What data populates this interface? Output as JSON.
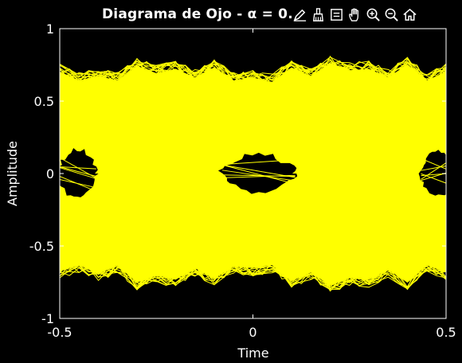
{
  "window": {
    "background": "#000000",
    "axes_color": "#ffffff",
    "text_color": "#ffffff"
  },
  "toolbar": {
    "icons": [
      "edit-plot-icon",
      "brush-icon",
      "data-cursor-icon",
      "pan-hand-icon",
      "zoom-in-icon",
      "zoom-out-icon",
      "home-icon"
    ]
  },
  "chart_data": {
    "type": "line",
    "title": "Diagrama de Ojo - α = 0.",
    "xlabel": "Time",
    "ylabel": "Amplitude",
    "xlim": [
      -0.5,
      0.5
    ],
    "ylim": [
      -1,
      1
    ],
    "xticks": [
      -0.5,
      0,
      0.5
    ],
    "xtick_labels": [
      "-0.5",
      "0",
      "0.5"
    ],
    "yticks": [
      -1,
      -0.5,
      0,
      0.5,
      1
    ],
    "ytick_labels": [
      "-1",
      "-0.5",
      "0",
      "0.5",
      "1"
    ],
    "grid": false,
    "line_color": "#ffff00",
    "envelope_upper": {
      "x": [
        -0.5,
        -0.45,
        -0.4,
        -0.35,
        -0.3,
        -0.25,
        -0.2,
        -0.15,
        -0.1,
        -0.05,
        0,
        0.05,
        0.1,
        0.15,
        0.2,
        0.25,
        0.3,
        0.35,
        0.4,
        0.45,
        0.5
      ],
      "y": [
        0.7,
        0.64,
        0.67,
        0.64,
        0.74,
        0.69,
        0.72,
        0.66,
        0.73,
        0.64,
        0.66,
        0.63,
        0.73,
        0.67,
        0.76,
        0.71,
        0.72,
        0.66,
        0.75,
        0.64,
        0.7
      ]
    },
    "envelope_lower": {
      "x": [
        -0.5,
        -0.45,
        -0.4,
        -0.35,
        -0.3,
        -0.25,
        -0.2,
        -0.15,
        -0.1,
        -0.05,
        0,
        0.05,
        0.1,
        0.15,
        0.2,
        0.25,
        0.3,
        0.35,
        0.4,
        0.45,
        0.5
      ],
      "y": [
        -0.67,
        -0.63,
        -0.69,
        -0.63,
        -0.75,
        -0.7,
        -0.73,
        -0.65,
        -0.72,
        -0.64,
        -0.65,
        -0.63,
        -0.74,
        -0.68,
        -0.77,
        -0.72,
        -0.73,
        -0.66,
        -0.75,
        -0.63,
        -0.68
      ]
    },
    "eye_openings": [
      {
        "x_center": -0.455,
        "half_width": 0.055,
        "half_height": 0.18
      },
      {
        "x_center": 0.015,
        "half_width": 0.105,
        "half_height": 0.14
      },
      {
        "x_center": 0.48,
        "half_width": 0.05,
        "half_height": 0.17
      }
    ]
  }
}
